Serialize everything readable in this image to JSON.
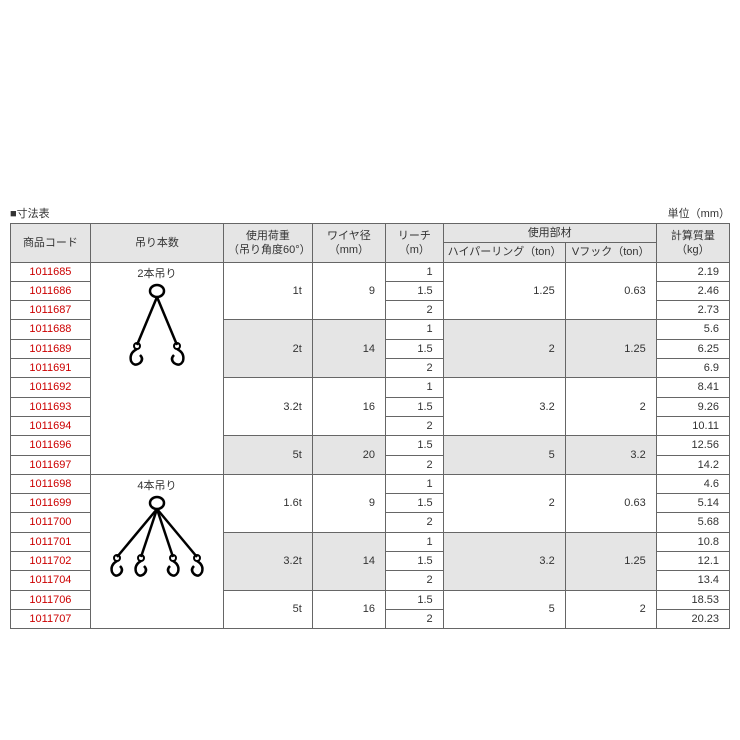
{
  "title": "■寸法表",
  "unit": "単位（mm）",
  "headers": {
    "code": "商品コード",
    "suspend": "吊り本数",
    "load": "使用荷重",
    "load_sub": "（吊り角度60°）",
    "wire": "ワイヤ径",
    "wire_unit": "（mm）",
    "reach": "リーチ",
    "reach_unit": "（m）",
    "parts": "使用部材",
    "ring": "ハイパーリング（ton）",
    "hook": "Vフック（ton）",
    "mass": "計算質量",
    "mass_unit": "（kg）"
  },
  "hang2_label": "2本吊り",
  "hang4_label": "4本吊り",
  "rows": [
    {
      "code": "1011685",
      "reach": "1",
      "mass": "2.19"
    },
    {
      "code": "1011686",
      "reach": "1.5",
      "mass": "2.46"
    },
    {
      "code": "1011687",
      "reach": "2",
      "mass": "2.73"
    },
    {
      "code": "1011688",
      "reach": "1",
      "mass": "5.6"
    },
    {
      "code": "1011689",
      "reach": "1.5",
      "mass": "6.25"
    },
    {
      "code": "1011691",
      "reach": "2",
      "mass": "6.9"
    },
    {
      "code": "1011692",
      "reach": "1",
      "mass": "8.41"
    },
    {
      "code": "1011693",
      "reach": "1.5",
      "mass": "9.26"
    },
    {
      "code": "1011694",
      "reach": "2",
      "mass": "10.11"
    },
    {
      "code": "1011696",
      "reach": "1.5",
      "mass": "12.56"
    },
    {
      "code": "1011697",
      "reach": "2",
      "mass": "14.2"
    },
    {
      "code": "1011698",
      "reach": "1",
      "mass": "4.6"
    },
    {
      "code": "1011699",
      "reach": "1.5",
      "mass": "5.14"
    },
    {
      "code": "1011700",
      "reach": "2",
      "mass": "5.68"
    },
    {
      "code": "1011701",
      "reach": "1",
      "mass": "10.8"
    },
    {
      "code": "1011702",
      "reach": "1.5",
      "mass": "12.1"
    },
    {
      "code": "1011704",
      "reach": "2",
      "mass": "13.4"
    },
    {
      "code": "1011706",
      "reach": "1.5",
      "mass": "18.53"
    },
    {
      "code": "1011707",
      "reach": "2",
      "mass": "20.23"
    }
  ],
  "groups": [
    {
      "load": "1t",
      "wire": "9",
      "ring": "1.25",
      "hook": "0.63",
      "shade": false
    },
    {
      "load": "2t",
      "wire": "14",
      "ring": "2",
      "hook": "1.25",
      "shade": true
    },
    {
      "load": "3.2t",
      "wire": "16",
      "ring": "3.2",
      "hook": "2",
      "shade": false
    },
    {
      "load": "5t",
      "wire": "20",
      "ring": "5",
      "hook": "3.2",
      "shade": true
    },
    {
      "load": "1.6t",
      "wire": "9",
      "ring": "2",
      "hook": "0.63",
      "shade": false
    },
    {
      "load": "3.2t",
      "wire": "14",
      "ring": "3.2",
      "hook": "1.25",
      "shade": true
    },
    {
      "load": "5t",
      "wire": "16",
      "ring": "5",
      "hook": "2",
      "shade": false
    }
  ],
  "colors": {
    "border": "#666666",
    "header_bg": "#e5e5e5",
    "code_color": "#cc0000",
    "text": "#333333"
  }
}
